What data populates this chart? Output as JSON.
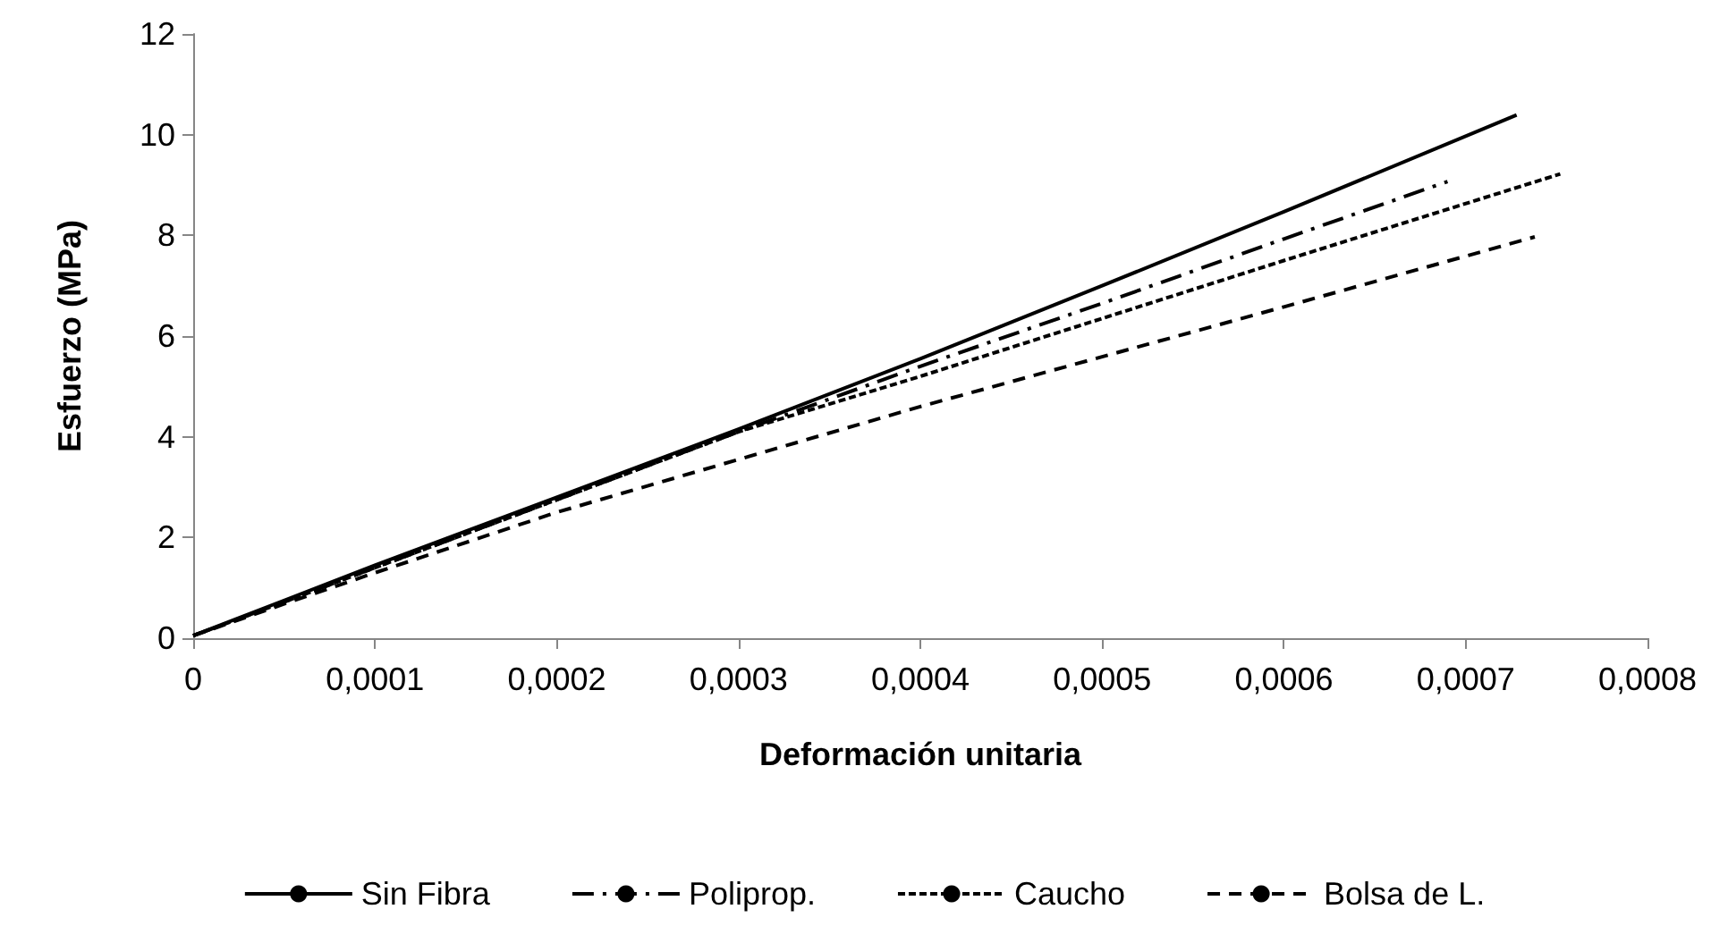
{
  "chart_data": {
    "type": "line",
    "xlabel": "Deformación unitaria",
    "ylabel": "Esfuerzo (MPa)",
    "xlim": [
      0,
      0.0008
    ],
    "xticks": [
      {
        "value": 0,
        "label": "0"
      },
      {
        "value": 0.0001,
        "label": "0,0001"
      },
      {
        "value": 0.0002,
        "label": "0,0002"
      },
      {
        "value": 0.0003,
        "label": "0,0003"
      },
      {
        "value": 0.0004,
        "label": "0,0004"
      },
      {
        "value": 0.0005,
        "label": "0,0005"
      },
      {
        "value": 0.0006,
        "label": "0,0006"
      },
      {
        "value": 0.0007,
        "label": "0,0007"
      },
      {
        "value": 0.0008,
        "label": "0,0008"
      }
    ],
    "ylim": [
      0,
      12
    ],
    "yticks": [
      0,
      2,
      4,
      6,
      8,
      10,
      12
    ],
    "grid": false,
    "legend": "bottom",
    "marker": "none",
    "series": [
      {
        "name": "Sin Fibra",
        "color": "#000000",
        "line_style": "solid",
        "x": [
          0,
          5e-05,
          0.0001,
          0.0002,
          0.0003,
          0.0004,
          0.0005,
          0.0006,
          0.000728
        ],
        "values": [
          0.05,
          0.75,
          1.45,
          2.8,
          4.15,
          5.55,
          7.0,
          8.47,
          10.39
        ]
      },
      {
        "name": "Poliprop.",
        "color": "#000000",
        "line_style": "dashdot",
        "x": [
          0,
          5e-05,
          0.0001,
          0.0002,
          0.0003,
          0.0004,
          0.0005,
          0.0006,
          0.00069
        ],
        "values": [
          0.05,
          0.72,
          1.4,
          2.75,
          4.1,
          5.4,
          6.65,
          7.93,
          9.07
        ]
      },
      {
        "name": "Caucho",
        "color": "#000000",
        "line_style": "dotted",
        "x": [
          0,
          5e-05,
          0.0001,
          0.0002,
          0.0003,
          0.0004,
          0.0005,
          0.0006,
          0.000752
        ],
        "values": [
          0.05,
          0.72,
          1.4,
          2.75,
          4.1,
          5.2,
          6.35,
          7.5,
          9.22
        ]
      },
      {
        "name": "Bolsa de L.",
        "color": "#000000",
        "line_style": "dashed",
        "x": [
          0,
          5e-05,
          0.0001,
          0.0002,
          0.0003,
          0.0004,
          0.0005,
          0.0006,
          0.000738
        ],
        "values": [
          0.05,
          0.68,
          1.3,
          2.5,
          3.55,
          4.6,
          5.59,
          6.58,
          7.97
        ]
      }
    ]
  }
}
